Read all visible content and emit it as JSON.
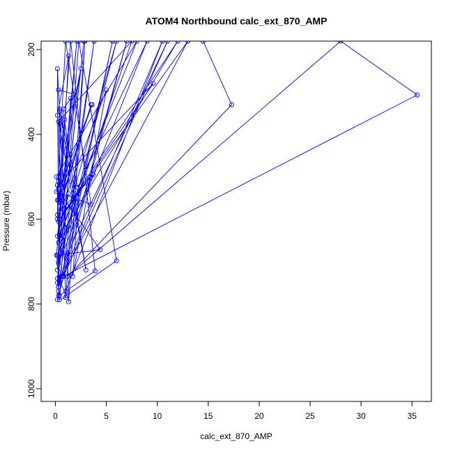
{
  "chart_data": {
    "type": "line",
    "title": "ATOM4 Northbound calc_ext_870_AMP",
    "xlabel": "calc_ext_870_AMP",
    "ylabel": "Pressure (mbar)",
    "xlim": [
      -1.4,
      36.9
    ],
    "ylim": [
      1030,
      180
    ],
    "y_reversed": true,
    "x_ticks": [
      0,
      5,
      10,
      15,
      20,
      25,
      30,
      35
    ],
    "y_ticks": [
      200,
      400,
      600,
      800,
      1000
    ],
    "x_tick_labels": [
      "0",
      "5",
      "10",
      "15",
      "20",
      "25",
      "30",
      "35"
    ],
    "y_tick_labels": [
      "200",
      "400",
      "600",
      "800",
      "1000"
    ],
    "series_color": "#0000ff",
    "series": [
      {
        "points": [
          [
            0.4,
            790
          ],
          [
            0.3,
            770
          ],
          [
            0.2,
            740
          ],
          [
            2.8,
            180
          ],
          [
            0.2,
            750
          ],
          [
            0.7,
            735
          ],
          [
            3.8,
            180
          ],
          [
            0.3,
            760
          ],
          [
            0.6,
            735
          ],
          [
            5.6,
            180
          ],
          [
            0.8,
            735
          ],
          [
            0.3,
            780
          ],
          [
            0.3,
            690
          ],
          [
            2.1,
            180
          ],
          [
            0.1,
            685
          ],
          [
            4.4,
            672
          ],
          [
            0.5,
            540
          ],
          [
            2.5,
            245
          ],
          [
            0.2,
            520
          ],
          [
            0.1,
            535
          ],
          [
            3.5,
            565
          ],
          [
            1.0,
            180
          ],
          [
            0.2,
            555
          ],
          [
            0.3,
            510
          ],
          [
            0.1,
            500
          ],
          [
            8.0,
            180
          ],
          [
            0.4,
            640
          ],
          [
            1.3,
            540
          ],
          [
            0.2,
            640
          ],
          [
            0.4,
            600
          ],
          [
            12.0,
            180
          ],
          [
            1.0,
            620
          ],
          [
            0.2,
            245
          ],
          [
            0.3,
            655
          ],
          [
            1.3,
            215
          ],
          [
            0.2,
            355
          ],
          [
            3.0,
            720
          ],
          [
            0.4,
            340
          ],
          [
            0.3,
            295
          ],
          [
            1.8,
            305
          ],
          [
            0.5,
            645
          ],
          [
            6.0,
            180
          ],
          [
            0.2,
            720
          ],
          [
            0.8,
            340
          ],
          [
            1.5,
            315
          ],
          [
            0.3,
            700
          ],
          [
            2.0,
            560
          ],
          [
            0.9,
            365
          ],
          [
            0.4,
            560
          ],
          [
            0.3,
            370
          ],
          [
            7.5,
            180
          ],
          [
            0.2,
            685
          ],
          [
            3.7,
            495
          ],
          [
            0.2,
            590
          ],
          [
            3.5,
            330
          ],
          [
            0.5,
            560
          ],
          [
            0.4,
            345
          ],
          [
            2.2,
            525
          ],
          [
            9.0,
            180
          ],
          [
            0.3,
            705
          ],
          [
            0.4,
            750
          ],
          [
            10.5,
            180
          ],
          [
            1.0,
            770
          ],
          [
            0.8,
            640
          ],
          [
            2.3,
            540
          ],
          [
            1.7,
            735
          ],
          [
            5.0,
            295
          ],
          [
            0.2,
            600
          ],
          [
            0.2,
            520
          ],
          [
            9.6,
            280
          ],
          [
            0.3,
            605
          ],
          [
            13.0,
            180
          ],
          [
            0.4,
            745
          ],
          [
            1.1,
            780
          ],
          [
            6.0,
            698
          ],
          [
            2.3,
            180
          ],
          [
            0.4,
            780
          ],
          [
            3.9,
            722
          ],
          [
            1.5,
            180
          ],
          [
            0.3,
            555
          ],
          [
            3.6,
            330
          ],
          [
            0.5,
            520
          ],
          [
            0.3,
            760
          ],
          [
            7.0,
            180
          ],
          [
            0.2,
            790
          ],
          [
            1.0,
            785
          ],
          [
            2.9,
            180
          ],
          [
            1.3,
            795
          ],
          [
            1.2,
            680
          ],
          [
            11.0,
            180
          ],
          [
            0.8,
            735
          ],
          [
            35.5,
            307
          ],
          [
            28.0,
            180
          ],
          [
            1.2,
            735
          ],
          [
            17.3,
            330
          ],
          [
            14.5,
            180
          ]
        ]
      }
    ]
  }
}
